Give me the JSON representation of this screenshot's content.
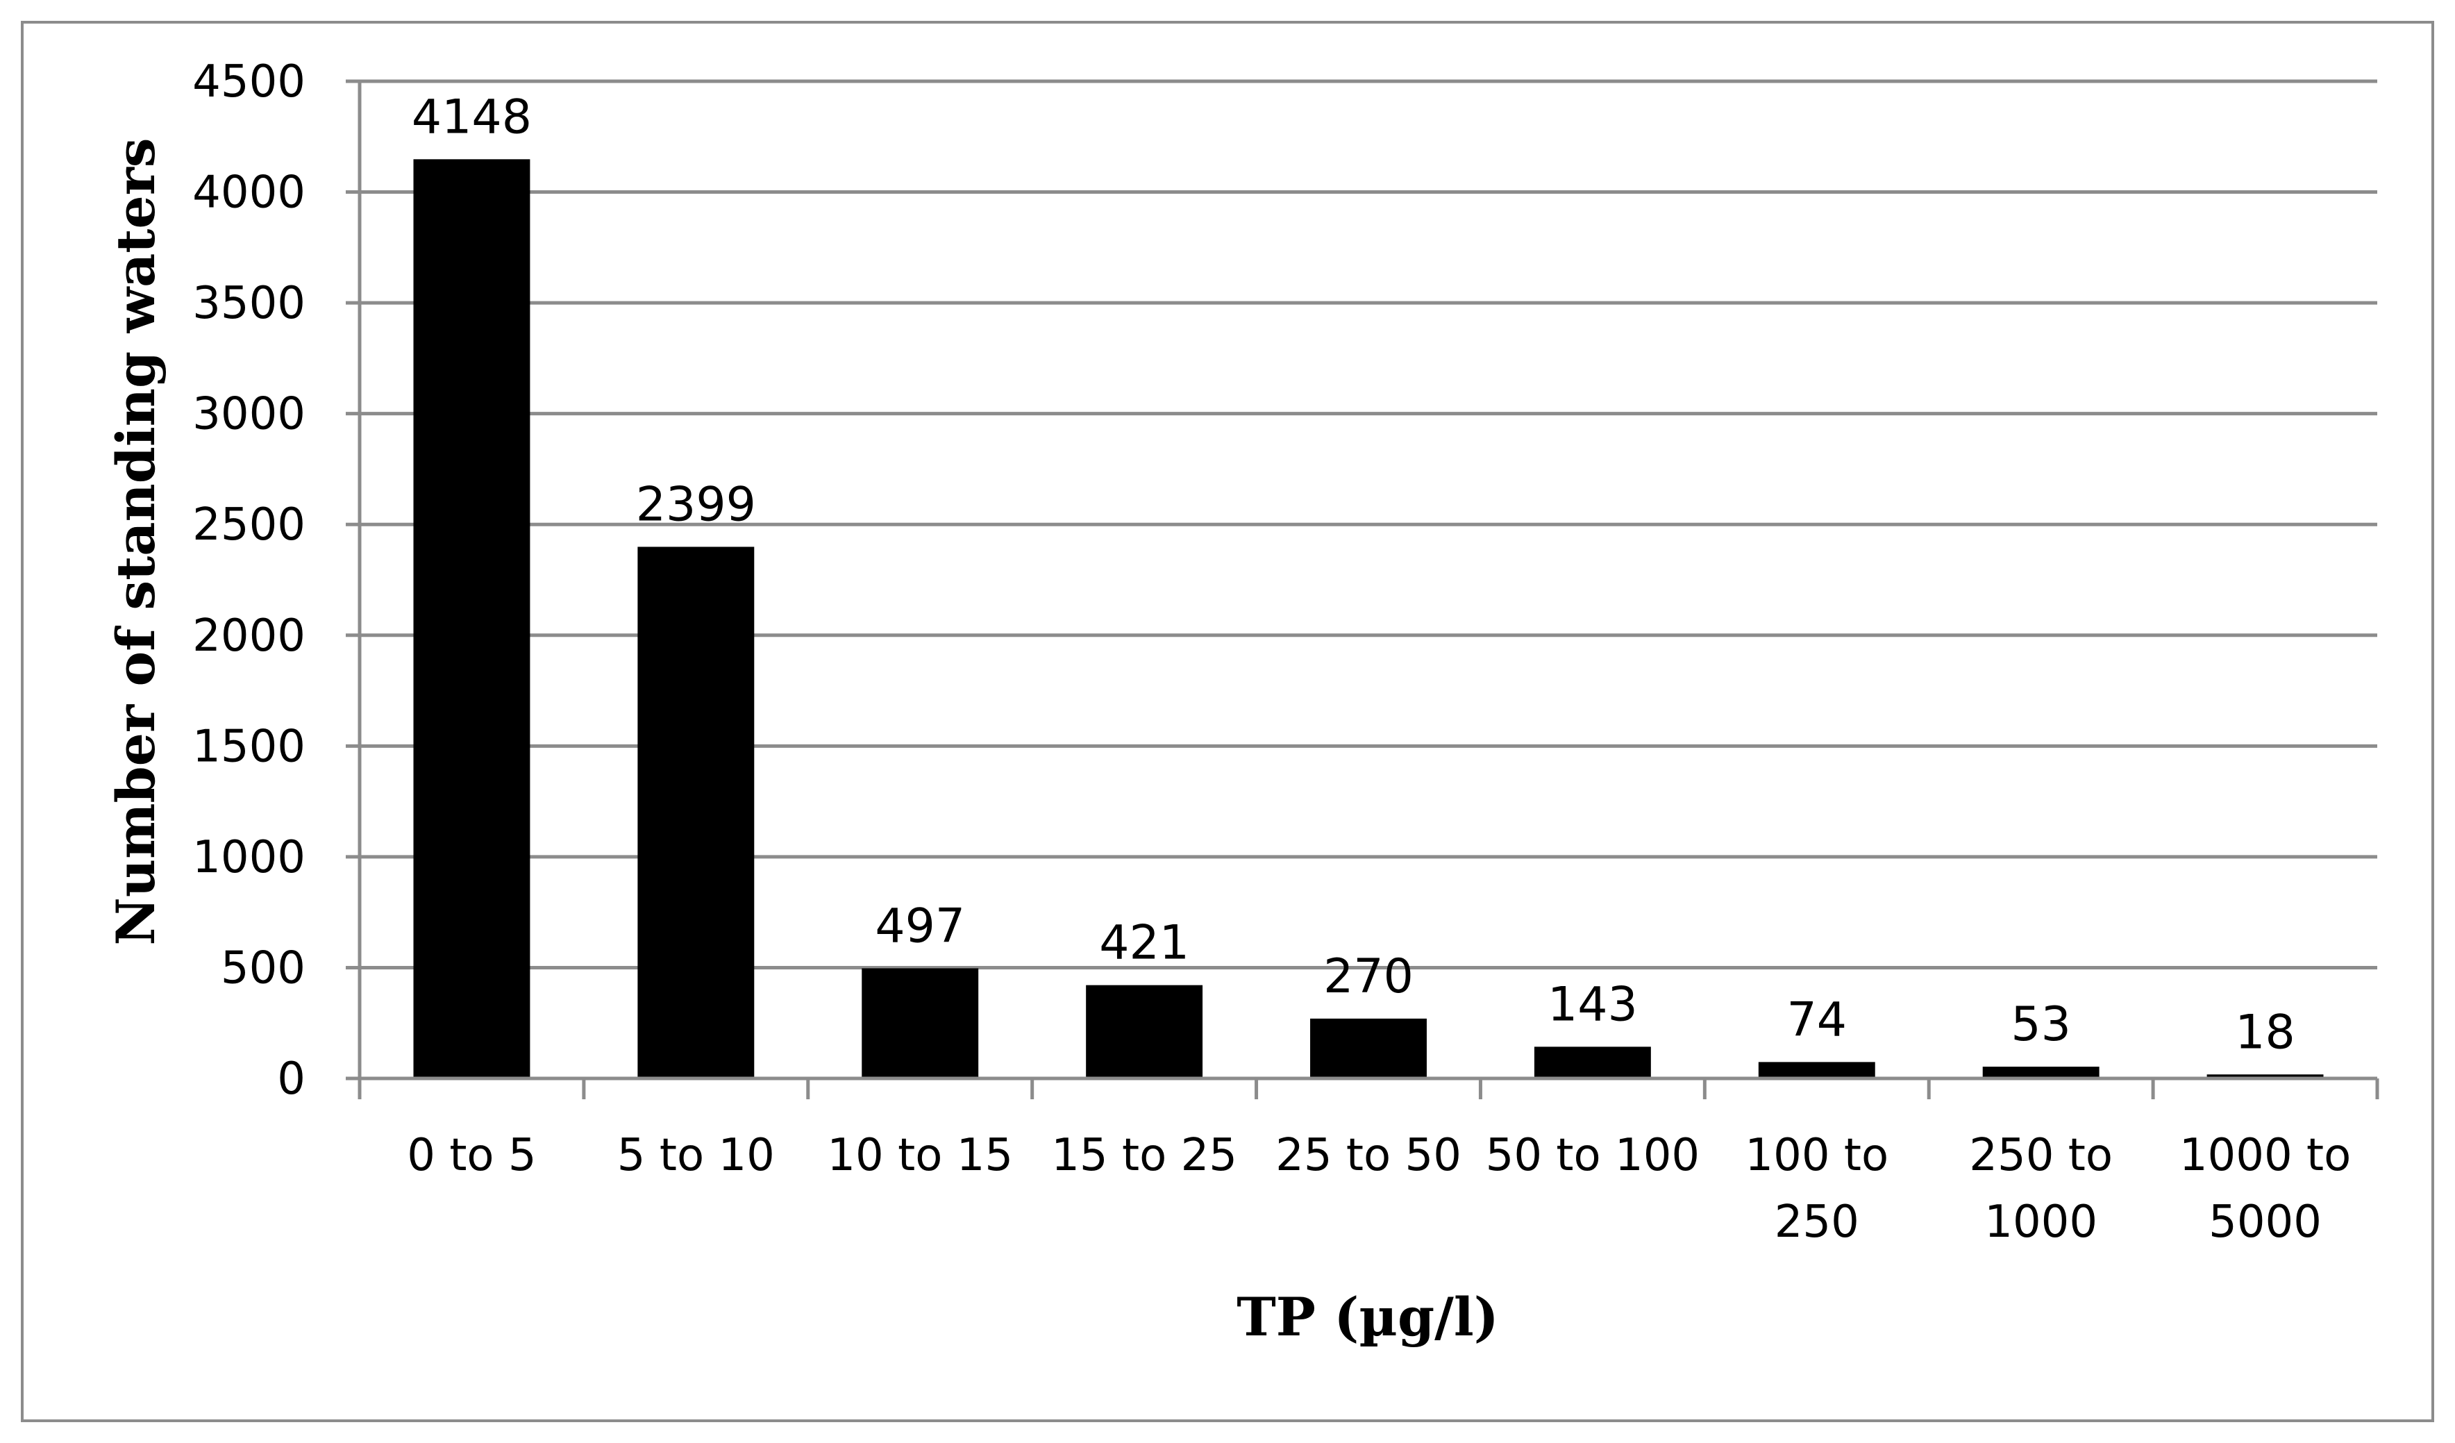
{
  "chart_data": {
    "type": "bar",
    "title": "",
    "xlabel": "TP (µg/l)",
    "ylabel": "Number of standing waters",
    "categories": [
      [
        "0 to 5"
      ],
      [
        "5 to 10"
      ],
      [
        "10 to 15"
      ],
      [
        "15 to 25"
      ],
      [
        "25 to 50"
      ],
      [
        "50 to 100"
      ],
      [
        "100 to",
        "250"
      ],
      [
        "250 to",
        "1000"
      ],
      [
        "1000 to",
        "5000"
      ]
    ],
    "values": [
      4148,
      2399,
      497,
      421,
      270,
      143,
      74,
      53,
      18
    ],
    "data_labels": [
      "4148",
      "2399",
      "497",
      "421",
      "270",
      "143",
      "74",
      "53",
      "18"
    ],
    "ylim": [
      0,
      4500
    ],
    "yticks": [
      0,
      500,
      1000,
      1500,
      2000,
      2500,
      3000,
      3500,
      4000,
      4500
    ],
    "grid": true,
    "legend": "none",
    "colors": {
      "bar": "#000000",
      "grid": "#8c8c8c",
      "axis": "#8c8c8c"
    }
  }
}
